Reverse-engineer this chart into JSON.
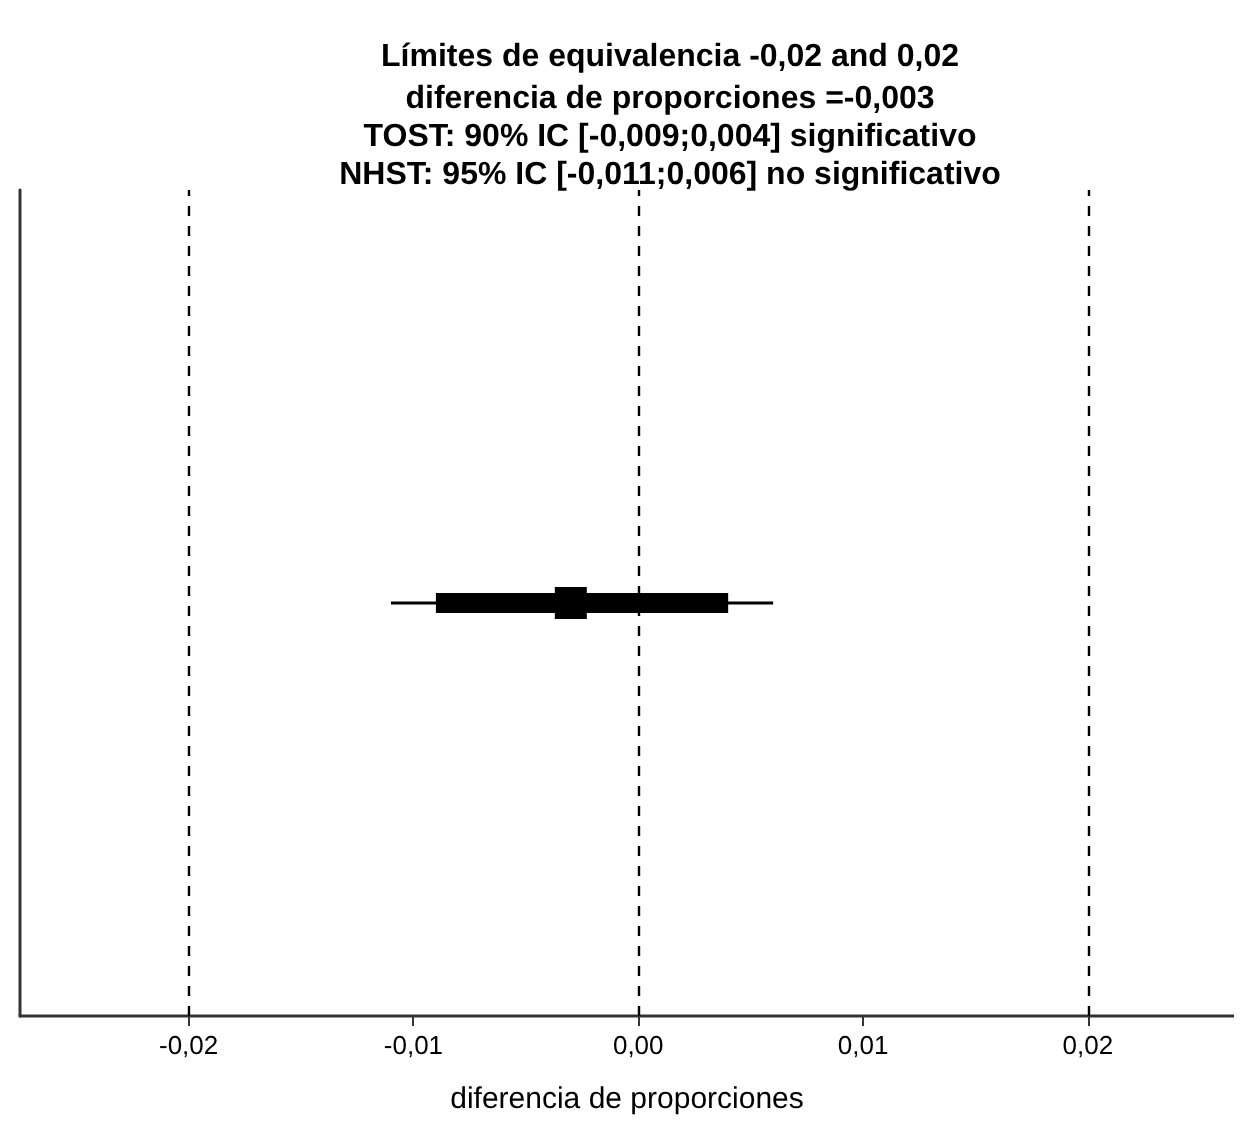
{
  "chart_data": {
    "type": "scatter",
    "orientation": "horizontal",
    "title": "Límites de equivalencia -0,02 and 0,02",
    "subtitle": "diferencia de proporciones =-0,003\nTOST: 90% IC [-0,009;0,004] significativo\nNHST: 95% IC [-0,011;0,006] no significativo",
    "xlabel": "diferencia de proporciones",
    "categories": [
      null
    ],
    "series": [
      {
        "type": "bar",
        "color": "#000000",
        "base": [
          -0.009
        ],
        "values": [
          0.013
        ]
      },
      {
        "color": "#000000",
        "values": [
          -0.003
        ],
        "errors": [
          [
            -0.011,
            0.006
          ]
        ]
      }
    ],
    "marker": "square",
    "xlim": [
      -0.0275,
      0.0265
    ],
    "xticks": [
      {
        "value": -0.02,
        "label": "-0,02"
      },
      {
        "value": -0.01,
        "label": "-0,01"
      },
      {
        "value": 0,
        "label": "0,00"
      },
      {
        "value": 0.01,
        "label": "0,01"
      },
      {
        "value": 0.02,
        "label": "0,02"
      }
    ],
    "ref_lines": [
      {
        "axis": "x",
        "value": -0.02,
        "line_style": "dashed",
        "color": "#000000"
      },
      {
        "axis": "x",
        "value": 0,
        "line_style": "dashed",
        "color": "#000000"
      },
      {
        "axis": "x",
        "value": 0.02,
        "line_style": "dashed",
        "color": "#000000"
      }
    ],
    "tick_labels": "x"
  }
}
